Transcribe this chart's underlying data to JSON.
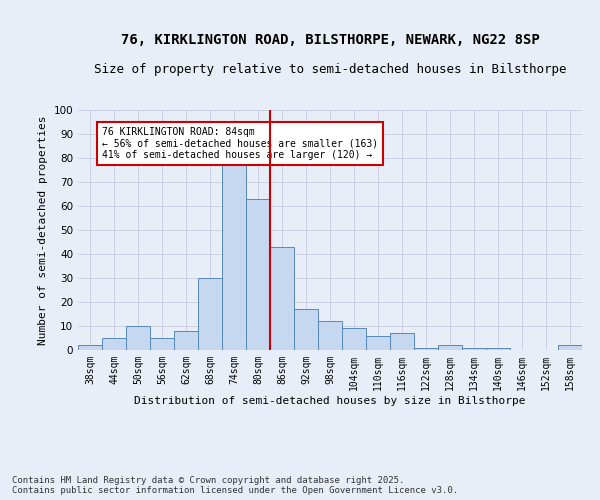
{
  "title": "76, KIRKLINGTON ROAD, BILSTHORPE, NEWARK, NG22 8SP",
  "subtitle": "Size of property relative to semi-detached houses in Bilsthorpe",
  "xlabel": "Distribution of semi-detached houses by size in Bilsthorpe",
  "ylabel": "Number of semi-detached properties",
  "bins": [
    "38sqm",
    "44sqm",
    "50sqm",
    "56sqm",
    "62sqm",
    "68sqm",
    "74sqm",
    "80sqm",
    "86sqm",
    "92sqm",
    "98sqm",
    "104sqm",
    "110sqm",
    "116sqm",
    "122sqm",
    "128sqm",
    "134sqm",
    "140sqm",
    "146sqm",
    "152sqm",
    "158sqm"
  ],
  "values": [
    2,
    5,
    10,
    5,
    8,
    30,
    78,
    63,
    43,
    17,
    12,
    9,
    6,
    7,
    1,
    2,
    1,
    1,
    0,
    0,
    2
  ],
  "bar_color": "#c5d8f0",
  "bar_edge_color": "#5588bb",
  "vline_pos": 7.5,
  "vline_color": "#cc0000",
  "annotation_text": "76 KIRKLINGTON ROAD: 84sqm\n← 56% of semi-detached houses are smaller (163)\n41% of semi-detached houses are larger (120) →",
  "annotation_box_color": "#ffffff",
  "annotation_box_edge": "#cc0000",
  "ylim": [
    0,
    100
  ],
  "yticks": [
    0,
    10,
    20,
    30,
    40,
    50,
    60,
    70,
    80,
    90,
    100
  ],
  "background_color": "#e8eef8",
  "footer": "Contains HM Land Registry data © Crown copyright and database right 2025.\nContains public sector information licensed under the Open Government Licence v3.0.",
  "title_fontsize": 10,
  "subtitle_fontsize": 9,
  "ylabel_fontsize": 8,
  "xlabel_fontsize": 8,
  "tick_fontsize": 7,
  "annotation_fontsize": 7,
  "footer_fontsize": 6.5
}
